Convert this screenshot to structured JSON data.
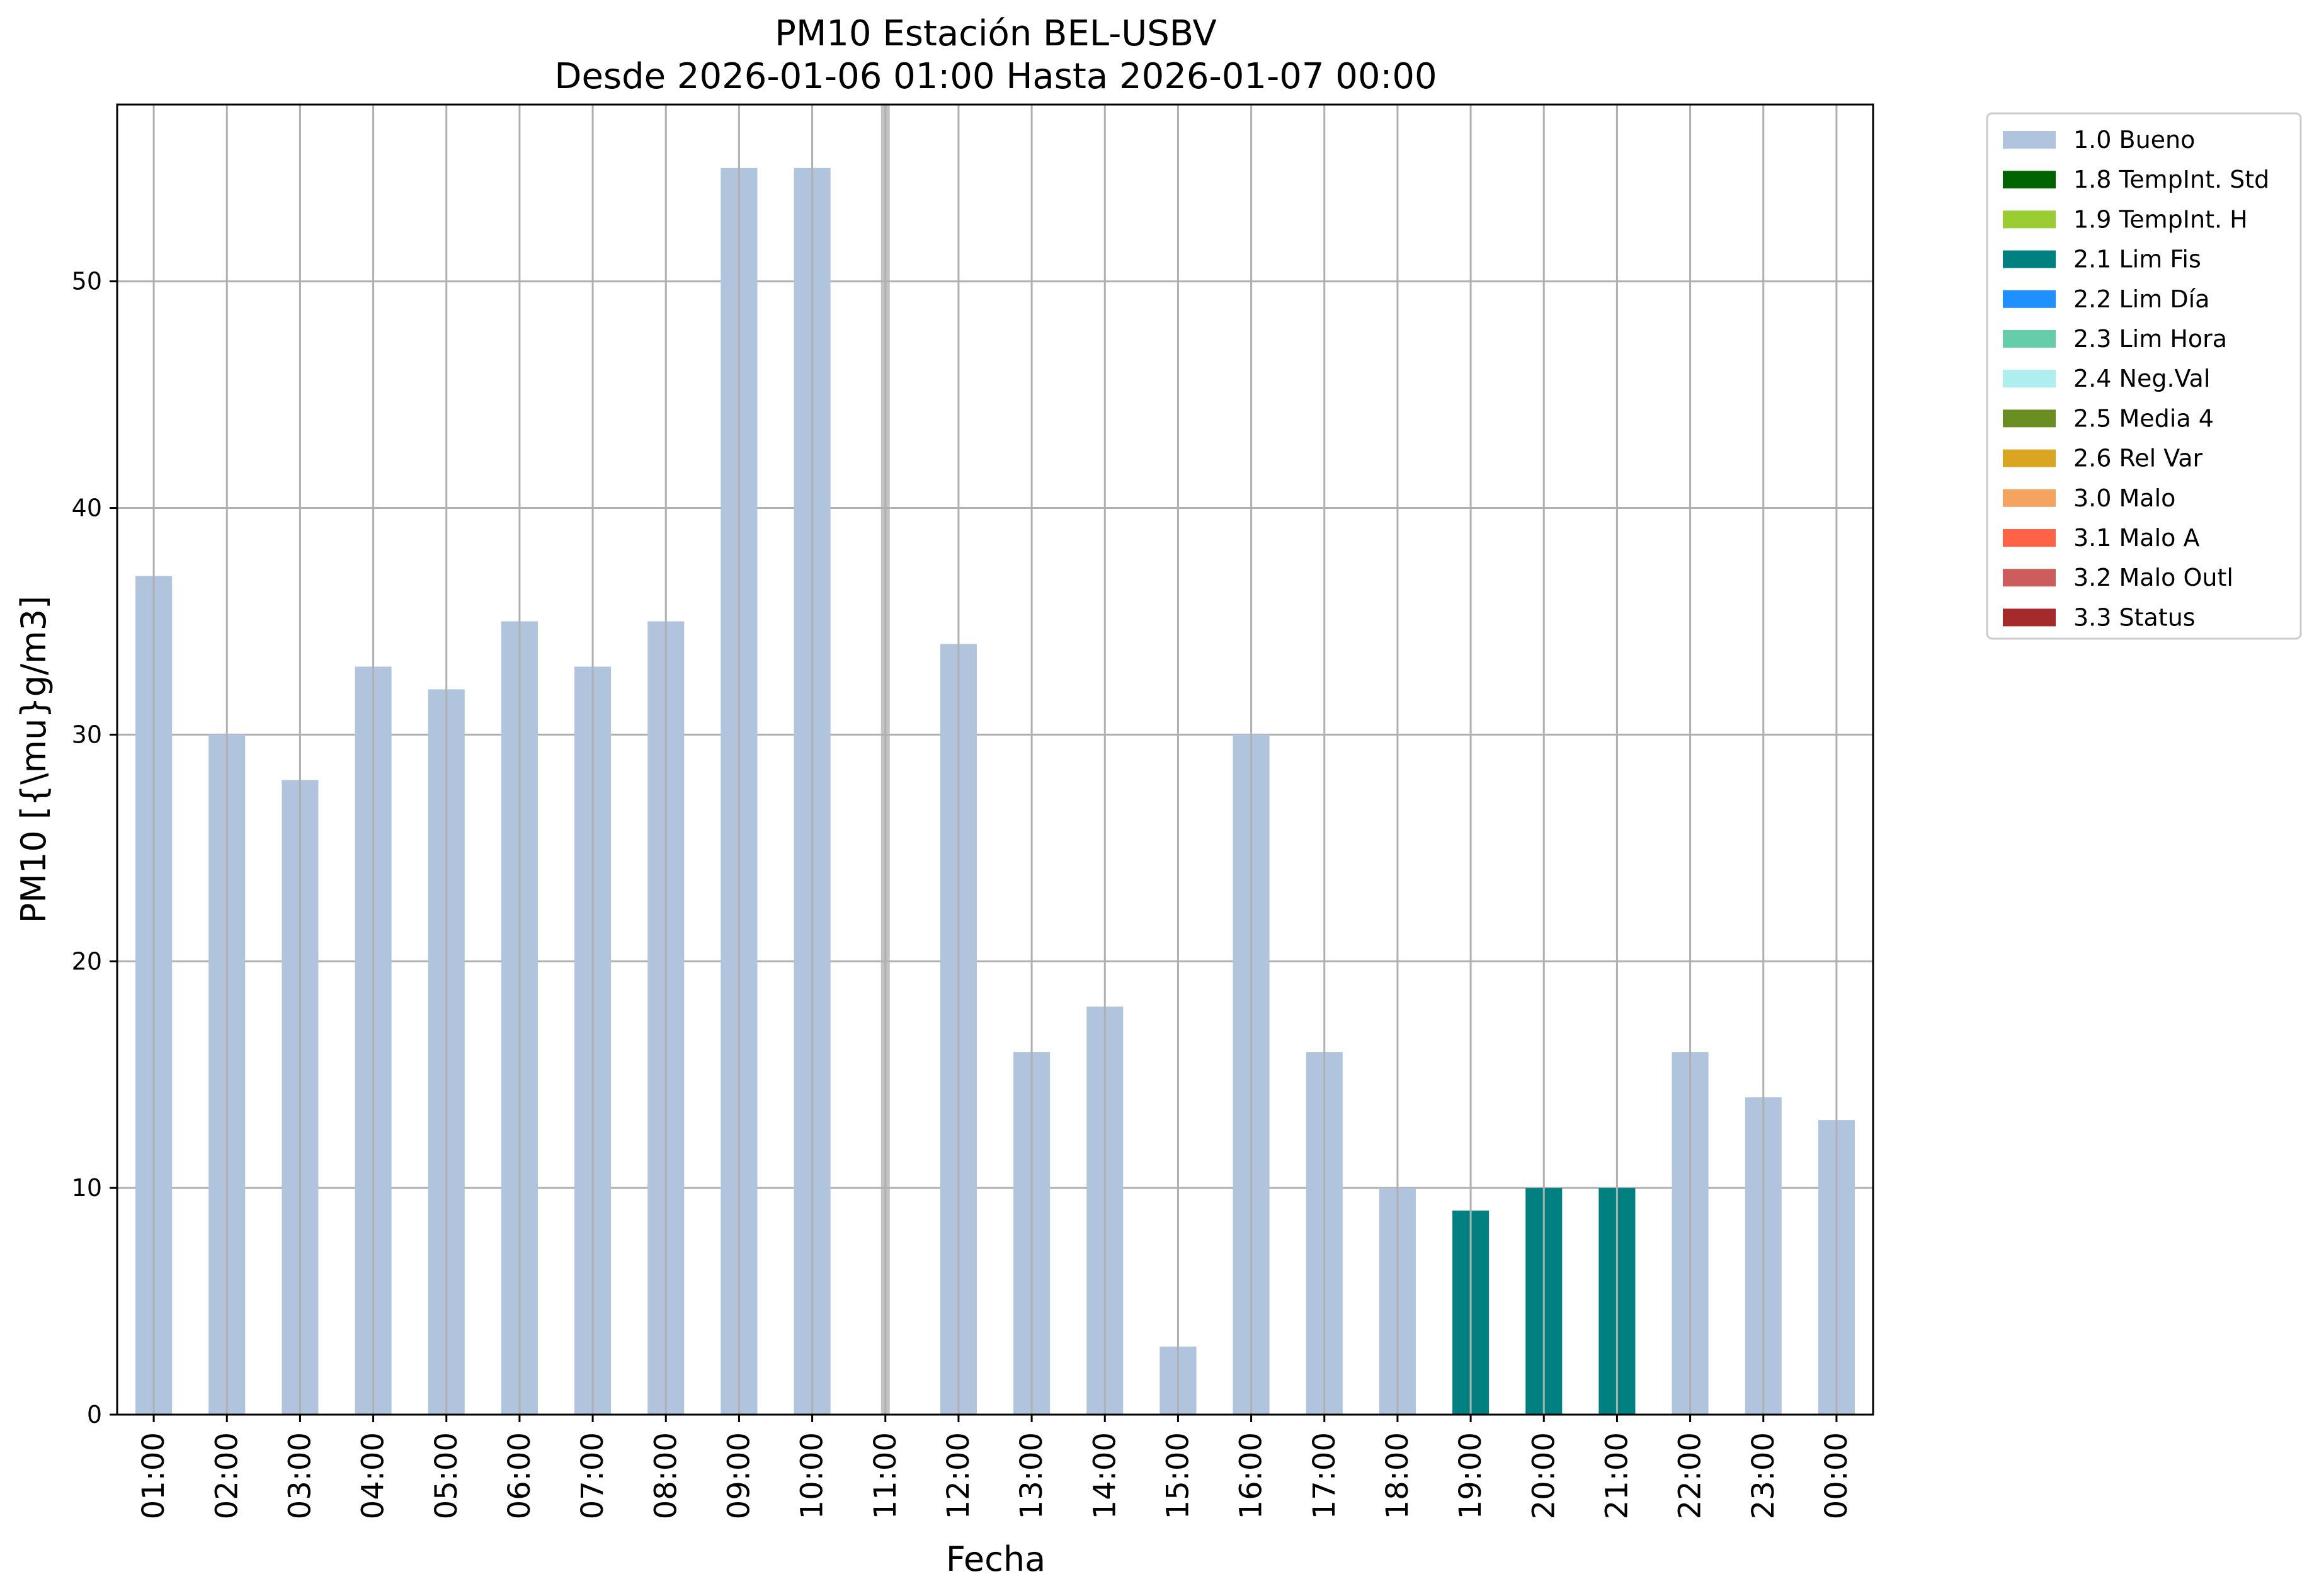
{
  "chart_data": {
    "type": "bar",
    "title": "PM10 Estación BEL-USBV",
    "subtitle": "Desde 2026-01-06 01:00 Hasta 2026-01-07 00:00",
    "xlabel": "Fecha",
    "ylabel": "PM10 [{\\mu}g/m3]",
    "ylim": [
      0,
      57.8
    ],
    "yticks": [
      0,
      10,
      20,
      30,
      40,
      50
    ],
    "grid": true,
    "legend_position": "outside-top-right",
    "categories": [
      "01:00",
      "02:00",
      "03:00",
      "04:00",
      "05:00",
      "06:00",
      "07:00",
      "08:00",
      "09:00",
      "10:00",
      "11:00",
      "12:00",
      "13:00",
      "14:00",
      "15:00",
      "16:00",
      "17:00",
      "18:00",
      "19:00",
      "20:00",
      "21:00",
      "22:00",
      "23:00",
      "00:00"
    ],
    "values": [
      37,
      30,
      28,
      33,
      32,
      35,
      33,
      35,
      55,
      55,
      null,
      34,
      16,
      18,
      3,
      30,
      16,
      10,
      9,
      10,
      10,
      16,
      14,
      13
    ],
    "flags": [
      "1.0 Bueno",
      "1.0 Bueno",
      "1.0 Bueno",
      "1.0 Bueno",
      "1.0 Bueno",
      "1.0 Bueno",
      "1.0 Bueno",
      "1.0 Bueno",
      "1.0 Bueno",
      "1.0 Bueno",
      null,
      "1.0 Bueno",
      "1.0 Bueno",
      "1.0 Bueno",
      "1.0 Bueno",
      "1.0 Bueno",
      "1.0 Bueno",
      "1.0 Bueno",
      "2.1 Lim Fis",
      "2.1 Lim Fis",
      "2.1 Lim Fis",
      "1.0 Bueno",
      "1.0 Bueno",
      "1.0 Bueno"
    ],
    "missing_marker_category": "11:00",
    "legend": [
      {
        "label": "1.0 Bueno",
        "color": "#b0c4de"
      },
      {
        "label": "1.8 TempInt. Std",
        "color": "#006400"
      },
      {
        "label": "1.9 TempInt. H",
        "color": "#9acd32"
      },
      {
        "label": "2.1 Lim Fis",
        "color": "#008080"
      },
      {
        "label": "2.2 Lim Día",
        "color": "#1e90ff"
      },
      {
        "label": "2.3 Lim Hora",
        "color": "#66cdaa"
      },
      {
        "label": "2.4 Neg.Val",
        "color": "#afeeee"
      },
      {
        "label": "2.5 Media 4",
        "color": "#6b8e23"
      },
      {
        "label": "2.6 Rel Var",
        "color": "#daa520"
      },
      {
        "label": "3.0 Malo",
        "color": "#f4a460"
      },
      {
        "label": "3.1 Malo A",
        "color": "#ff6347"
      },
      {
        "label": "3.2 Malo Outl",
        "color": "#cd5c5c"
      },
      {
        "label": "3.3 Status",
        "color": "#a52a2a"
      }
    ]
  }
}
